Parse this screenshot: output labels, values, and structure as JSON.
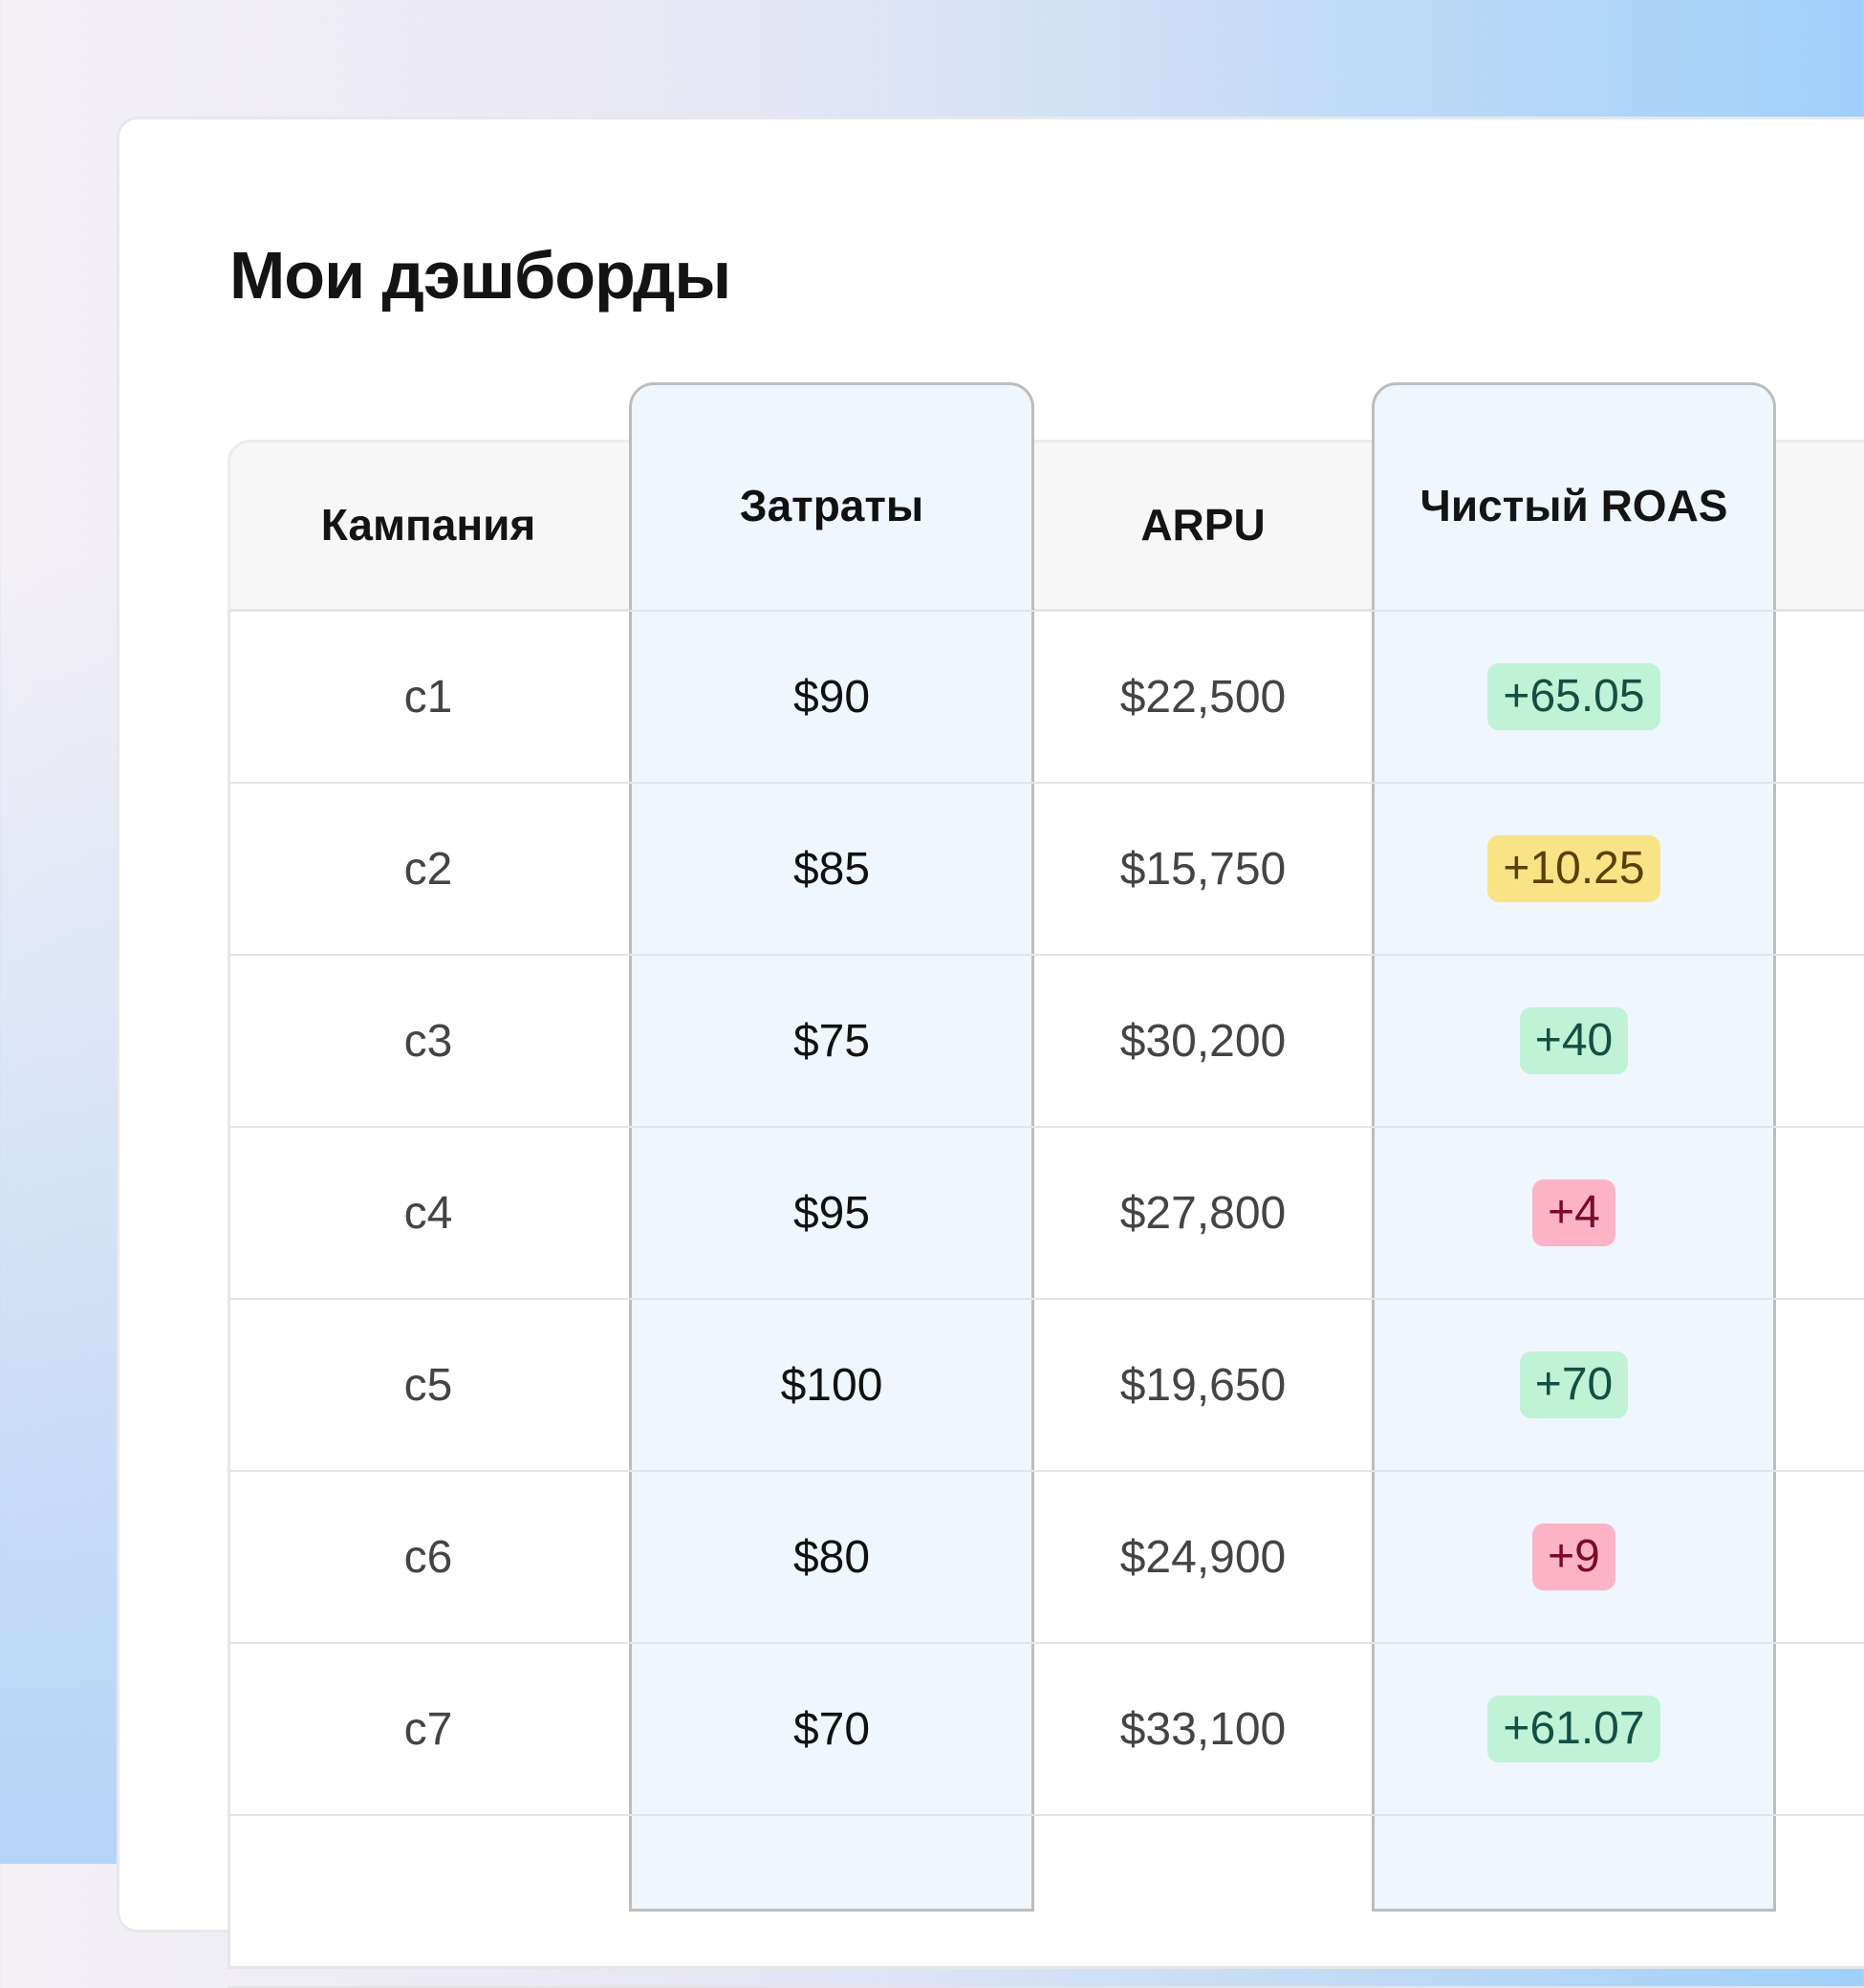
{
  "page": {
    "title": "Мои дэшборды"
  },
  "table": {
    "columns": [
      "Кампания",
      "Затраты",
      "ARPU",
      "Чистый ROAS"
    ],
    "rows": [
      {
        "campaign": "c1",
        "spend": "$90",
        "arpu": "$22,500",
        "roas": "+65.05",
        "status": "green"
      },
      {
        "campaign": "c2",
        "spend": "$85",
        "arpu": "$15,750",
        "roas": "+10.25",
        "status": "yellow"
      },
      {
        "campaign": "c3",
        "spend": "$75",
        "arpu": "$30,200",
        "roas": "+40",
        "status": "green"
      },
      {
        "campaign": "c4",
        "spend": "$95",
        "arpu": "$27,800",
        "roas": "+4",
        "status": "red"
      },
      {
        "campaign": "c5",
        "spend": "$100",
        "arpu": "$19,650",
        "roas": "+70",
        "status": "green"
      },
      {
        "campaign": "c6",
        "spend": "$80",
        "arpu": "$24,900",
        "roas": "+9",
        "status": "red"
      },
      {
        "campaign": "c7",
        "spend": "$70",
        "arpu": "$33,100",
        "roas": "+61.07",
        "status": "green"
      }
    ]
  },
  "colors": {
    "highlight_column": "#eff6fe",
    "green": {
      "bg": "#c0f2d5",
      "fg": "#134f44"
    },
    "yellow": {
      "bg": "#f8e487",
      "fg": "#5a4000"
    },
    "red": {
      "bg": "#fdb3c6",
      "fg": "#7a0a2a"
    }
  }
}
